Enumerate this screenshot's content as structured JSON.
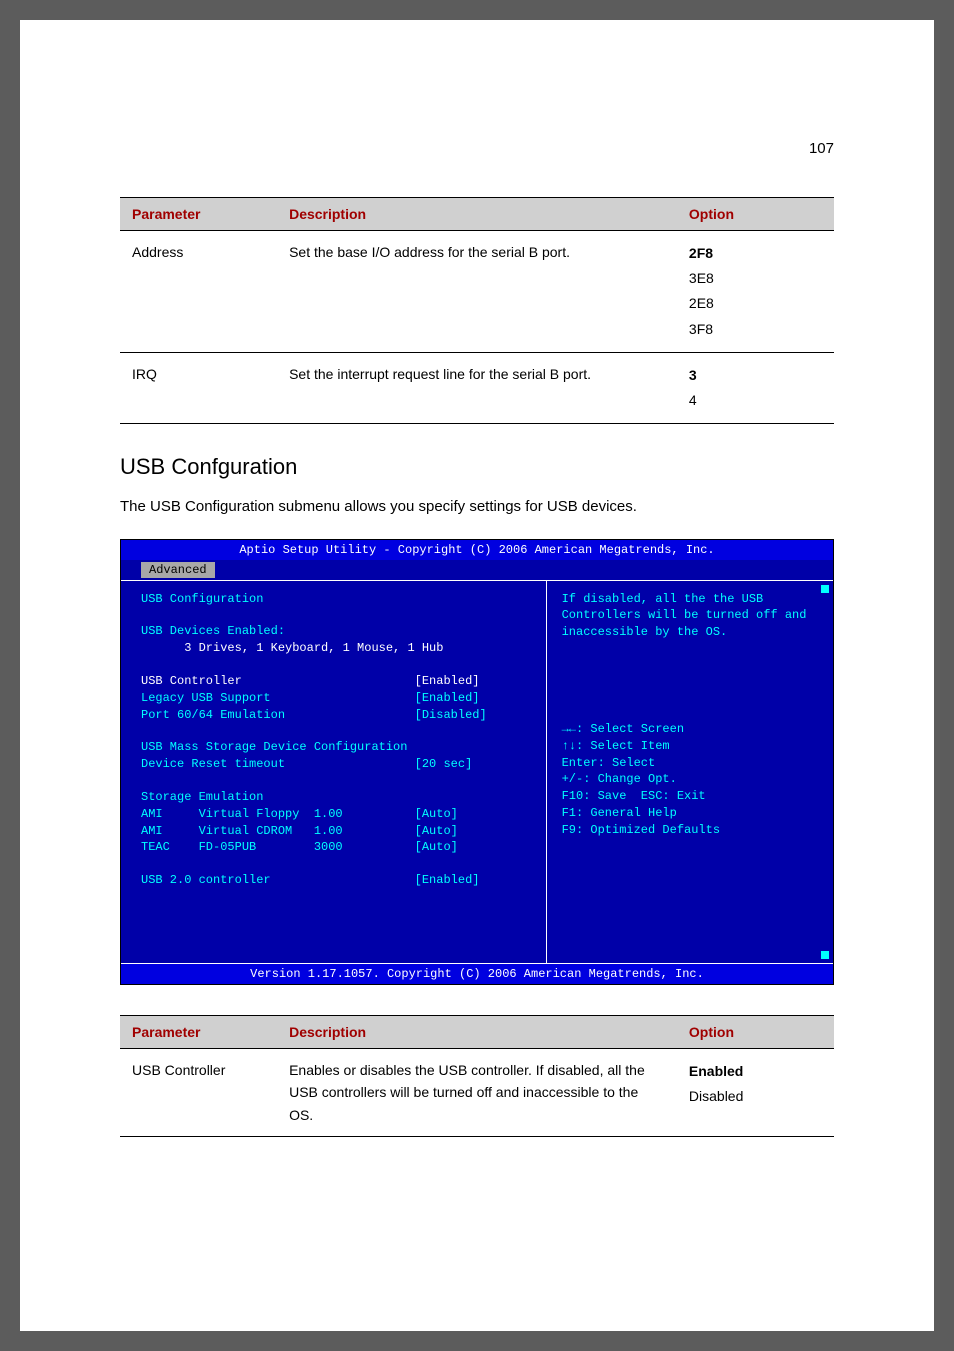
{
  "page_number": "107",
  "table1": {
    "headers": [
      "Parameter",
      "Description",
      "Option"
    ],
    "rows": [
      {
        "param": "Address",
        "desc": "Set the base I/O address for the serial B port.",
        "options": [
          "2F8",
          "3E8",
          "2E8",
          "3F8"
        ],
        "bold_index": 0
      },
      {
        "param": "IRQ",
        "desc": "Set the interrupt request line for the serial B port.",
        "options": [
          "3",
          "4"
        ],
        "bold_index": 0
      }
    ]
  },
  "section_title": "USB Confguration",
  "section_desc": "The USB Configuration submenu allows you specify settings for USB devices.",
  "bios": {
    "header": "Aptio Setup Utility - Copyright (C) 2006 American Megatrends, Inc.",
    "tab": "Advanced",
    "left_lines": [
      {
        "text": "USB Configuration",
        "class": "cyan"
      },
      {
        "text": "",
        "class": ""
      },
      {
        "text": "USB Devices Enabled:",
        "class": "cyan"
      },
      {
        "text": "      3 Drives, 1 Keyboard, 1 Mouse, 1 Hub",
        "class": "white"
      },
      {
        "text": "",
        "class": ""
      },
      {
        "label": "USB Controller",
        "value": "[Enabled]",
        "class": "white",
        "pad": 38
      },
      {
        "label": "Legacy USB Support",
        "value": "[Enabled]",
        "class": "cyan",
        "pad": 38
      },
      {
        "label": "Port 60/64 Emulation",
        "value": "[Disabled]",
        "class": "cyan",
        "pad": 38
      },
      {
        "text": "",
        "class": ""
      },
      {
        "text": "USB Mass Storage Device Configuration",
        "class": "cyan"
      },
      {
        "label": "Device Reset timeout",
        "value": "[20 sec]",
        "class": "cyan",
        "pad": 38
      },
      {
        "text": "",
        "class": ""
      },
      {
        "text": "Storage Emulation",
        "class": "cyan"
      },
      {
        "label": "AMI     Virtual Floppy  1.00",
        "value": "[Auto]",
        "class": "cyan",
        "pad": 38
      },
      {
        "label": "AMI     Virtual CDROM   1.00",
        "value": "[Auto]",
        "class": "cyan",
        "pad": 38
      },
      {
        "label": "TEAC    FD-05PUB        3000",
        "value": "[Auto]",
        "class": "cyan",
        "pad": 38
      },
      {
        "text": "",
        "class": ""
      },
      {
        "label": "USB 2.0 controller",
        "value": "[Enabled]",
        "class": "cyan",
        "pad": 38
      },
      {
        "text": "",
        "class": ""
      },
      {
        "text": "",
        "class": ""
      },
      {
        "text": "",
        "class": ""
      },
      {
        "text": "",
        "class": ""
      }
    ],
    "help_top": "If disabled, all the the USB Controllers will be turned off and inaccessible by the OS.",
    "help_bottom": "→←: Select Screen\n↑↓: Select Item\nEnter: Select\n+/-: Change Opt.\nF10: Save  ESC: Exit\nF1: General Help\nF9: Optimized Defaults",
    "footer": "Version 1.17.1057. Copyright (C) 2006 American Megatrends, Inc."
  },
  "table2": {
    "headers": [
      "Parameter",
      "Description",
      "Option"
    ],
    "rows": [
      {
        "param": "USB Controller",
        "desc": "Enables or disables the USB controller. If disabled, all the USB controllers will be turned off and inaccessible to the OS.",
        "options": [
          "Enabled",
          "Disabled"
        ],
        "bold_index": 0
      }
    ]
  }
}
